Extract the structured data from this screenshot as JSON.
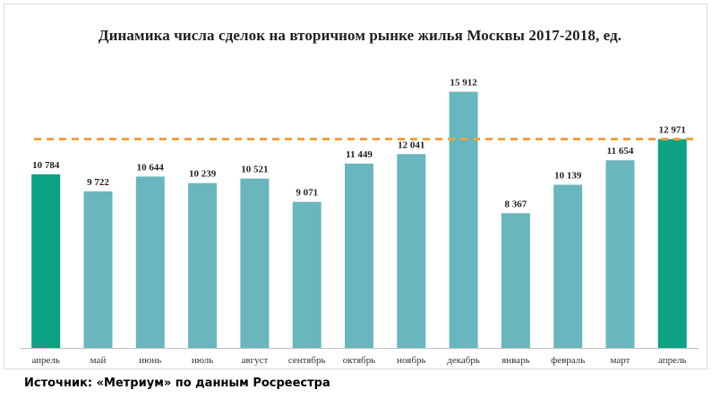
{
  "chart_data": {
    "type": "bar",
    "title": "Динамика числа сделок на вторичном рынке жилья Москвы 2017-2018, ед.",
    "categories": [
      "апрель",
      "май",
      "июнь",
      "июль",
      "август",
      "сентябрь",
      "октябрь",
      "ноябрь",
      "декабрь",
      "январь",
      "февраль",
      "март",
      "апрель"
    ],
    "values": [
      10784,
      9722,
      10644,
      10239,
      10521,
      9071,
      11449,
      12041,
      15912,
      8367,
      10139,
      11654,
      12971
    ],
    "value_labels": [
      "10 784",
      "9 722",
      "10 644",
      "10 239",
      "10 521",
      "9 071",
      "11 449",
      "12 041",
      "15 912",
      "8 367",
      "10 139",
      "11 654",
      "12 971"
    ],
    "ylim": [
      0,
      18000
    ],
    "grid": false,
    "legend": "none",
    "reference_line": {
      "value": 12971,
      "style": "dashed",
      "color": "#f4a13a"
    },
    "highlighted_categories": [
      0,
      12
    ],
    "colors": {
      "default_bar": "#69b6bf",
      "highlight_bar": "#0aa283",
      "axis": "#bfbfbf"
    }
  },
  "source": "Источник: «Метриум» по данным Росреестра"
}
